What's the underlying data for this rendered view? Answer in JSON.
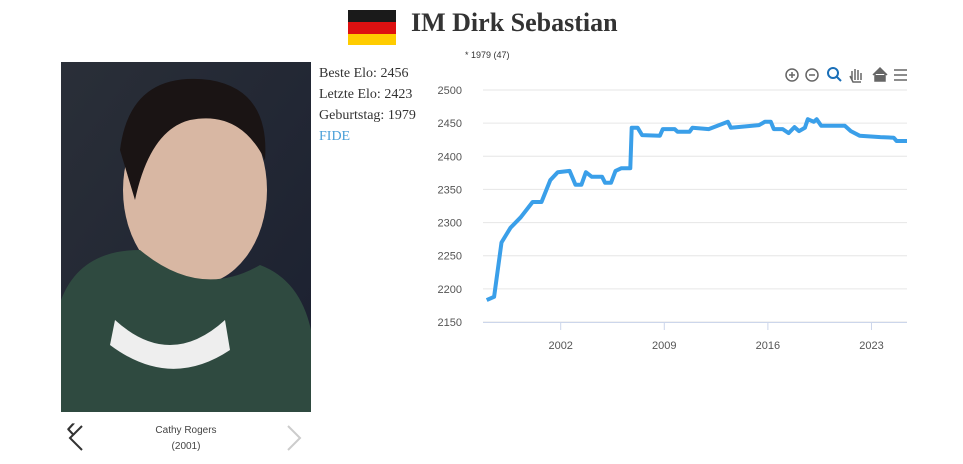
{
  "header": {
    "title": "IM Dirk Sebastian"
  },
  "photo": {
    "caption": "Cathy Rogers",
    "year": "(2001)"
  },
  "profile": {
    "items": [
      {
        "label": "Beste Elo:",
        "value": 2456
      },
      {
        "label": "Letzte Elo:",
        "value": 2423
      },
      {
        "label": "Geburtstag:",
        "value": 1979
      }
    ],
    "link": "FIDE"
  },
  "chart_data": {
    "type": "line",
    "note": "* 1979 (47)",
    "color": "#3a9fe9",
    "grid": true,
    "x": [
      1997.0,
      1997.5,
      1998.0,
      1998.6,
      1999.3,
      2000.1,
      2000.7,
      2001.3,
      2001.8,
      2002.6,
      2003.0,
      2003.4,
      2003.7,
      2004.1,
      2004.8,
      2005.0,
      2005.4,
      2005.7,
      2006.1,
      2006.7,
      2006.8,
      2007.2,
      2007.5,
      2008.7,
      2008.9,
      2009.7,
      2009.9,
      2010.7,
      2010.9,
      2012.0,
      2013.3,
      2013.5,
      2015.4,
      2015.8,
      2016.2,
      2016.4,
      2017.0,
      2017.4,
      2017.8,
      2018.1,
      2018.5,
      2018.7,
      2019.1,
      2019.3,
      2019.6,
      2021.2,
      2021.6,
      2022.2,
      2023.6,
      2024.5,
      2024.7,
      2025.4
    ],
    "values": [
      2183,
      2188,
      2270,
      2292,
      2308,
      2331,
      2331,
      2364,
      2376,
      2378,
      2357,
      2357,
      2376,
      2369,
      2369,
      2360,
      2360,
      2378,
      2382,
      2382,
      2443,
      2443,
      2432,
      2431,
      2441,
      2441,
      2437,
      2437,
      2443,
      2441,
      2452,
      2443,
      2447,
      2452,
      2452,
      2441,
      2441,
      2435,
      2444,
      2438,
      2443,
      2456,
      2452,
      2456,
      2446,
      2446,
      2438,
      2431,
      2429,
      2428,
      2423,
      2423
    ],
    "xlim": [
      1996.75,
      2025.4
    ],
    "xticks": [
      2002,
      2009,
      2016,
      2023
    ],
    "ylim": [
      2150,
      2500
    ],
    "yticks": [
      2150,
      2200,
      2250,
      2300,
      2350,
      2400,
      2450,
      2500
    ]
  }
}
